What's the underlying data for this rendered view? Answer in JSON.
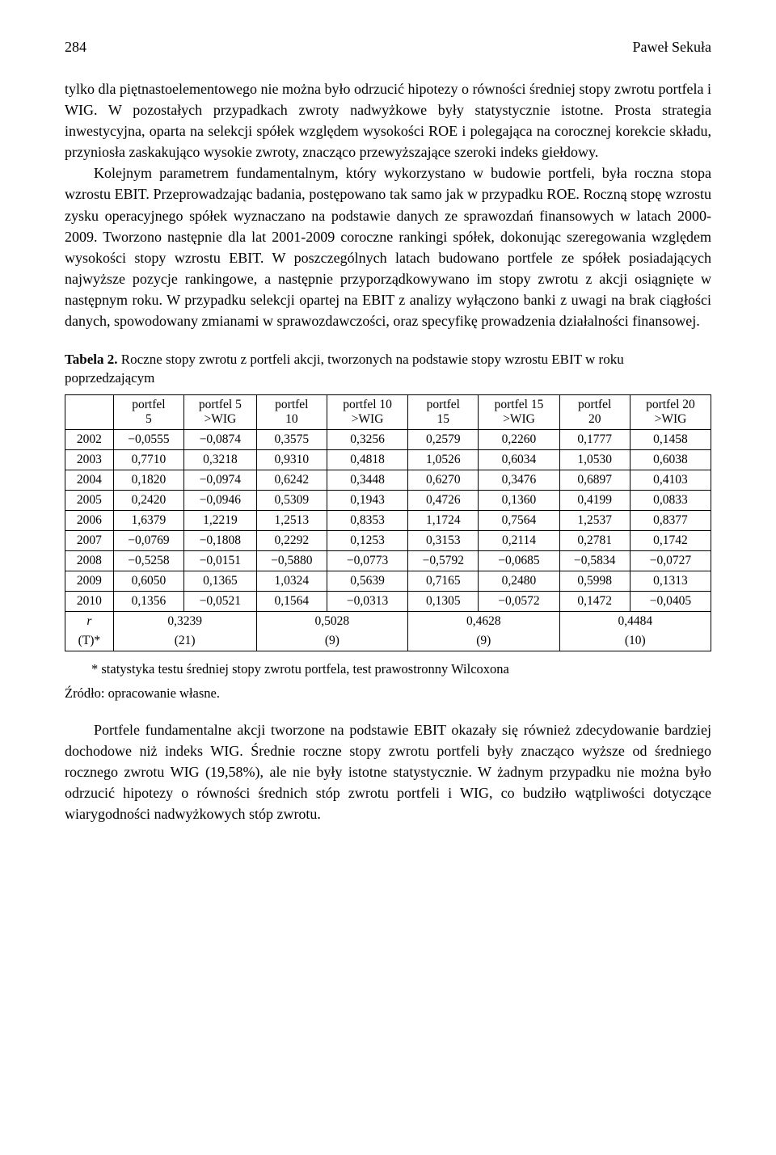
{
  "header": {
    "page": "284",
    "author": "Paweł Sekuła"
  },
  "para1": "tylko dla piętnastoelementowego nie można było odrzucić hipotezy o równości średniej stopy zwrotu portfela i WIG. W pozostałych przypadkach zwroty nadwyżkowe były statystycznie istotne. Prosta strategia inwestycyjna, oparta na selekcji spółek względem wysokości ROE i polegająca na corocznej korekcie składu, przyniosła zaskakująco wysokie zwroty, znacząco przewyższające szeroki indeks giełdowy.",
  "para2": "Kolejnym parametrem fundamentalnym, który wykorzystano w budowie portfeli, była roczna stopa wzrostu EBIT. Przeprowadzając badania, postępowano tak samo jak w przypadku ROE. Roczną stopę wzrostu zysku operacyjnego spółek wyznaczano na podstawie danych ze sprawozdań finansowych w latach 2000-2009. Tworzono następnie dla lat 2001-2009 coroczne rankingi spółek, dokonując szeregowania względem wysokości stopy wzrostu EBIT. W poszczególnych latach budowano portfele ze spółek posiadających najwyższe pozycje rankingowe, a następnie przyporządkowywano im stopy zwrotu z akcji osiągnięte w następnym roku. W przypadku selekcji opartej na EBIT z analizy wyłączono banki z uwagi na brak ciągłości danych, spowodowany zmianami w sprawozdawczości, oraz specyfikę prowadzenia działalności finansowej.",
  "table": {
    "caption_bold": "Tabela 2.",
    "caption_rest": " Roczne stopy zwrotu z portfeli akcji, tworzonych na podstawie stopy wzrostu EBIT w roku poprzedzającym",
    "columns": [
      "",
      "portfel 5",
      "portfel 5 >WIG",
      "portfel 10",
      "portfel 10 >WIG",
      "portfel 15",
      "portfel 15 >WIG",
      "portfel 20",
      "portfel 20 >WIG"
    ],
    "rows": [
      [
        "2002",
        "−0,0555",
        "−0,0874",
        "0,3575",
        "0,3256",
        "0,2579",
        "0,2260",
        "0,1777",
        "0,1458"
      ],
      [
        "2003",
        "0,7710",
        "0,3218",
        "0,9310",
        "0,4818",
        "1,0526",
        "0,6034",
        "1,0530",
        "0,6038"
      ],
      [
        "2004",
        "0,1820",
        "−0,0974",
        "0,6242",
        "0,3448",
        "0,6270",
        "0,3476",
        "0,6897",
        "0,4103"
      ],
      [
        "2005",
        "0,2420",
        "−0,0946",
        "0,5309",
        "0,1943",
        "0,4726",
        "0,1360",
        "0,4199",
        "0,0833"
      ],
      [
        "2006",
        "1,6379",
        "1,2219",
        "1,2513",
        "0,8353",
        "1,1724",
        "0,7564",
        "1,2537",
        "0,8377"
      ],
      [
        "2007",
        "−0,0769",
        "−0,1808",
        "0,2292",
        "0,1253",
        "0,3153",
        "0,2114",
        "0,2781",
        "0,1742"
      ],
      [
        "2008",
        "−0,5258",
        "−0,0151",
        "−0,5880",
        "−0,0773",
        "−0,5792",
        "−0,0685",
        "−0,5834",
        "−0,0727"
      ],
      [
        "2009",
        "0,6050",
        "0,1365",
        "1,0324",
        "0,5639",
        "0,7165",
        "0,2480",
        "0,5998",
        "0,1313"
      ],
      [
        "2010",
        "0,1356",
        "−0,0521",
        "0,1564",
        "−0,0313",
        "0,1305",
        "−0,0572",
        "0,1472",
        "−0,0405"
      ]
    ],
    "summary": {
      "r_label": "r̄",
      "t_label": "(T)*",
      "vals": [
        {
          "r": "0,3239",
          "t": "(21)"
        },
        {
          "r": "0,5028",
          "t": "(9)"
        },
        {
          "r": "0,4628",
          "t": "(9)"
        },
        {
          "r": "0,4484",
          "t": "(10)"
        }
      ]
    }
  },
  "footnote": "* statystyka testu średniej stopy zwrotu portfela, test prawostronny Wilcoxona",
  "source": "Źródło: opracowanie własne.",
  "para3": "Portfele fundamentalne akcji tworzone na podstawie EBIT okazały się również zdecydowanie bardziej dochodowe niż indeks WIG. Średnie roczne stopy zwrotu portfeli były znacząco wyższe od średniego rocznego zwrotu WIG (19,58%), ale nie były istotne statystycznie. W żadnym przypadku nie można było odrzucić hipotezy o równości średnich stóp zwrotu portfeli i WIG, co budziło wątpliwości dotyczące wiarygodności nadwyżkowych stóp zwrotu."
}
